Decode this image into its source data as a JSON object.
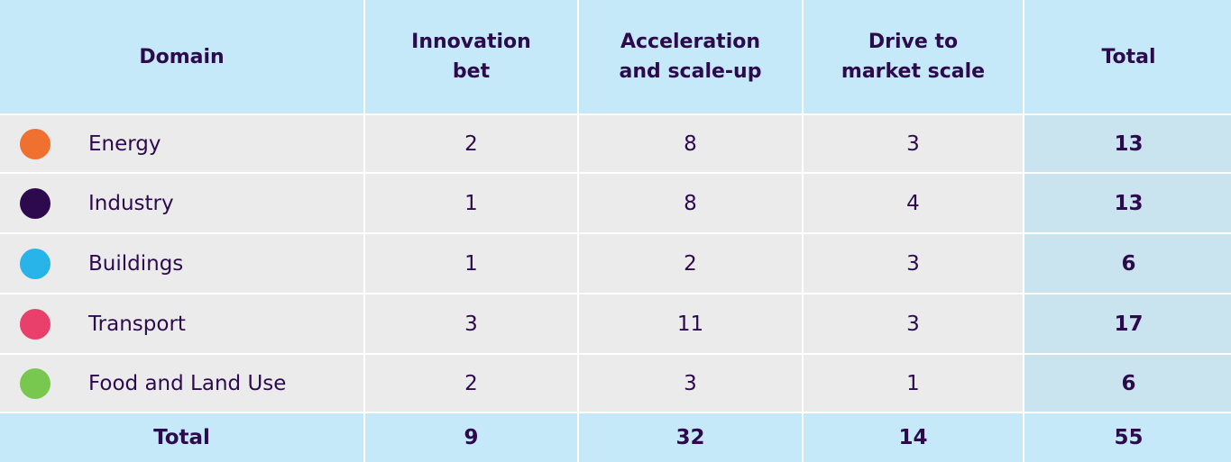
{
  "table": {
    "header": [
      "Domain",
      "Innovation\nbet",
      "Acceleration\nand scale-up",
      "Drive to\nmarket scale",
      "Total"
    ],
    "rows": [
      {
        "domain": "Energy",
        "values": [
          2,
          8,
          3
        ],
        "total": 13
      },
      {
        "domain": "Industry",
        "values": [
          1,
          8,
          4
        ],
        "total": 13
      },
      {
        "domain": "Buildings",
        "values": [
          1,
          2,
          3
        ],
        "total": 6
      },
      {
        "domain": "Transport",
        "values": [
          3,
          11,
          3
        ],
        "total": 17
      },
      {
        "domain": "Food and Land Use",
        "values": [
          2,
          3,
          1
        ],
        "total": 6
      }
    ],
    "total_row": {
      "label": "Total",
      "values": [
        9,
        32,
        14
      ],
      "total": 55
    }
  }
}
